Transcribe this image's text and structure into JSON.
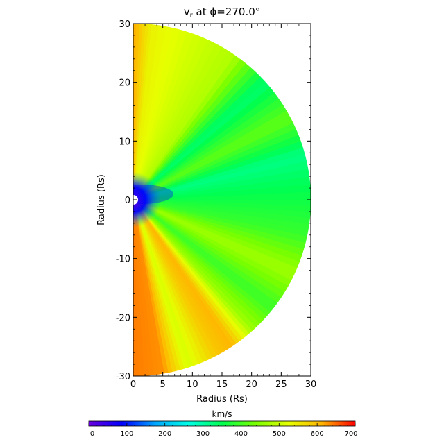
{
  "chart_data": {
    "type": "heatmap",
    "title": "vᵣ at ϕ=270.0°",
    "title_parts": {
      "var": "v",
      "sub": "r",
      "rest": " at ϕ=270.0°"
    },
    "xlabel": "Radius (Rs)",
    "ylabel": "Radius (Rs)",
    "xlim": [
      0,
      30
    ],
    "ylim": [
      -30,
      30
    ],
    "x_ticks": [
      0,
      5,
      10,
      15,
      20,
      25,
      30
    ],
    "y_ticks": [
      30,
      20,
      10,
      0,
      -10,
      -20,
      -30
    ],
    "domain": "half-disk of radius 30 Rs, x >= 0",
    "colorbar": {
      "label": "km/s",
      "range": [
        0,
        700
      ],
      "ticks": [
        0,
        100,
        200,
        300,
        400,
        500,
        600,
        700
      ],
      "colormap": [
        "#6a00dc",
        "#0000ff",
        "#00a6ff",
        "#00ffe6",
        "#00ff50",
        "#78ff00",
        "#e6ff00",
        "#ffb400",
        "#ff0000"
      ]
    },
    "rays": [
      {
        "angle_deg": 90,
        "value": 620
      },
      {
        "angle_deg": 84,
        "value": 540
      },
      {
        "angle_deg": 70,
        "value": 510
      },
      {
        "angle_deg": 55,
        "value": 480
      },
      {
        "angle_deg": 42,
        "value": 330
      },
      {
        "angle_deg": 28,
        "value": 420
      },
      {
        "angle_deg": 15,
        "value": 320
      },
      {
        "angle_deg": 0,
        "value": 360
      },
      {
        "angle_deg": -12,
        "value": 390
      },
      {
        "angle_deg": -25,
        "value": 470
      },
      {
        "angle_deg": -38,
        "value": 390
      },
      {
        "angle_deg": -48,
        "value": 470
      },
      {
        "angle_deg": -56,
        "value": 610
      },
      {
        "angle_deg": -62,
        "value": 590
      },
      {
        "angle_deg": -72,
        "value": 510
      },
      {
        "angle_deg": -80,
        "value": 630
      },
      {
        "angle_deg": -90,
        "value": 640
      }
    ],
    "inner_core": {
      "radius_rs": 4.5,
      "value": 70
    }
  }
}
